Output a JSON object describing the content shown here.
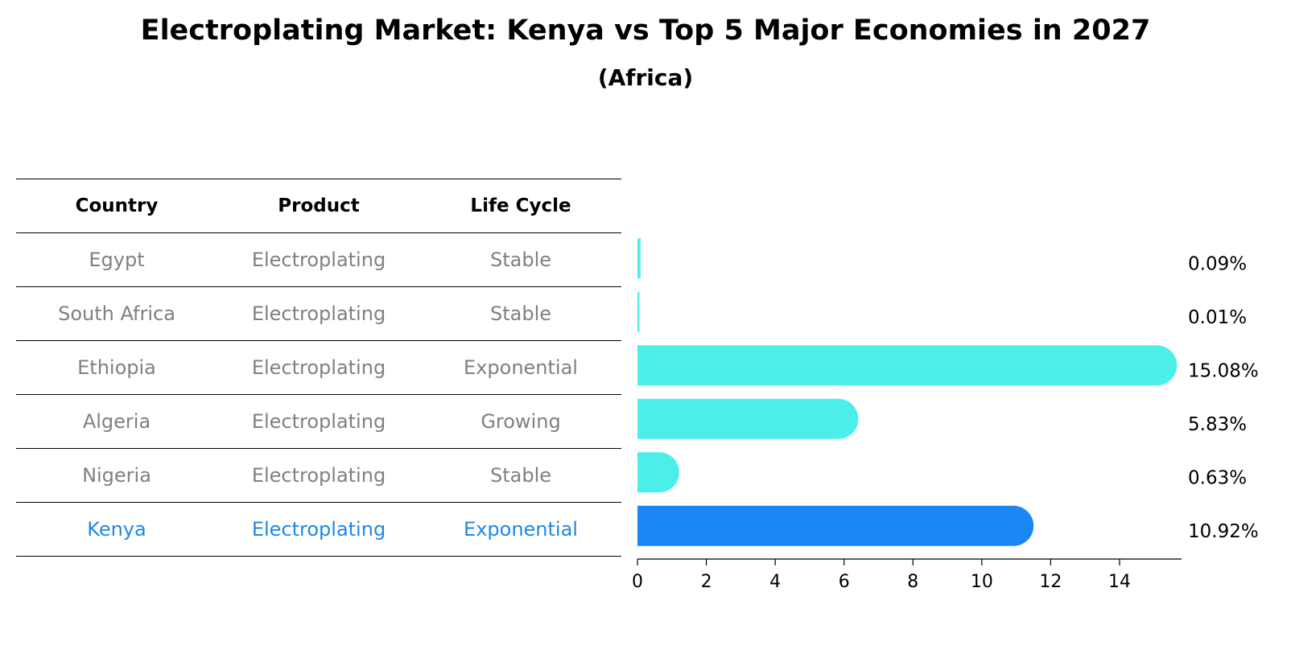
{
  "title": "Electroplating Market: Kenya vs Top 5 Major Economies in 2027",
  "subtitle": "(Africa)",
  "table": {
    "headers": [
      "Country",
      "Product",
      "Life Cycle"
    ],
    "rows": [
      {
        "country": "Egypt",
        "product": "Electroplating",
        "life_cycle": "Stable"
      },
      {
        "country": "South Africa",
        "product": "Electroplating",
        "life_cycle": "Stable"
      },
      {
        "country": "Ethiopia",
        "product": "Electroplating",
        "life_cycle": "Exponential"
      },
      {
        "country": "Algeria",
        "product": "Electroplating",
        "life_cycle": "Growing"
      },
      {
        "country": "Nigeria",
        "product": "Electroplating",
        "life_cycle": "Stable"
      },
      {
        "country": "Kenya",
        "product": "Electroplating",
        "life_cycle": "Exponential"
      }
    ]
  },
  "colors": {
    "bar": "#4ceeea",
    "highlight": "#1a87f5",
    "text_muted": "#808080",
    "text_highlight": "#1e88e5"
  },
  "chart_data": {
    "type": "bar",
    "orientation": "horizontal",
    "categories": [
      "Egypt",
      "South Africa",
      "Ethiopia",
      "Algeria",
      "Nigeria",
      "Kenya"
    ],
    "values": [
      0.09,
      0.01,
      15.08,
      5.83,
      0.63,
      10.92
    ],
    "value_labels": [
      "0.09%",
      "0.01%",
      "15.08%",
      "5.83%",
      "0.63%",
      "10.92%"
    ],
    "highlight": "Kenya",
    "xlim": [
      0,
      15.8
    ],
    "xticks": [
      0,
      2,
      4,
      6,
      8,
      10,
      12,
      14
    ],
    "xlabel": "",
    "ylabel": ""
  }
}
